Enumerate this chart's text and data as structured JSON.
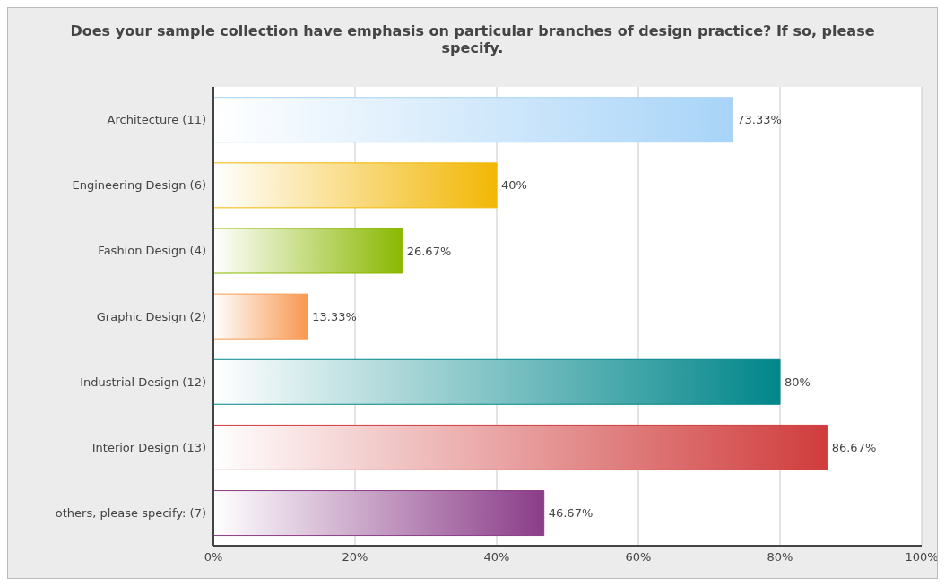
{
  "chart_data": {
    "type": "bar",
    "orientation": "horizontal",
    "title": "Does your sample collection have emphasis on particular branches of design practice? If so, please specify.",
    "categories": [
      "Architecture (11)",
      "Engineering Design (6)",
      "Fashion Design (4)",
      "Graphic Design (2)",
      "Industrial Design (12)",
      "Interior Design (13)",
      "others, please specify: (7)"
    ],
    "values": [
      73.33,
      40,
      26.67,
      13.33,
      80,
      86.67,
      46.67
    ],
    "colors": [
      "#a8d4f8",
      "#f2b705",
      "#8ab800",
      "#f89850",
      "#00868a",
      "#d03c3c",
      "#8a3c88"
    ],
    "value_labels": [
      "73.33%",
      "40%",
      "26.67%",
      "13.33%",
      "80%",
      "86.67%",
      "46.67%"
    ],
    "xlim": [
      0,
      100
    ],
    "xticks": [
      {
        "value": 0,
        "label": "0%"
      },
      {
        "value": 20,
        "label": "20%"
      },
      {
        "value": 40,
        "label": "40%"
      },
      {
        "value": 60,
        "label": "60%"
      },
      {
        "value": 80,
        "label": "80%"
      },
      {
        "value": 100,
        "label": "100%"
      }
    ],
    "grid": "x"
  }
}
